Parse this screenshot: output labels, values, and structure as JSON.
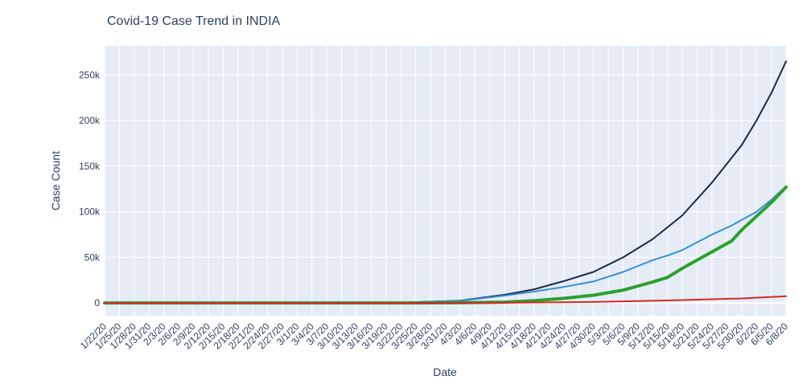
{
  "chart_data": {
    "type": "line",
    "title": "Covid-19 Case Trend in INDIA",
    "xlabel": "Date",
    "ylabel": "Case Count",
    "ylim": [
      -14000,
      282000
    ],
    "yticks": [
      0,
      50000,
      100000,
      150000,
      200000,
      250000
    ],
    "ytick_labels": [
      "0",
      "50k",
      "100k",
      "150k",
      "200k",
      "250k"
    ],
    "start_date": "2020-01-22",
    "num_days": 139,
    "xticks": [
      "1/22/20",
      "1/25/20",
      "1/28/20",
      "1/31/20",
      "2/3/20",
      "2/6/20",
      "2/9/20",
      "2/12/20",
      "2/15/20",
      "2/18/20",
      "2/21/20",
      "2/24/20",
      "2/27/20",
      "3/1/20",
      "3/4/20",
      "3/7/20",
      "3/10/20",
      "3/13/20",
      "3/16/20",
      "3/19/20",
      "3/22/20",
      "3/25/20",
      "3/28/20",
      "3/31/20",
      "4/3/20",
      "4/6/20",
      "4/9/20",
      "4/12/20",
      "4/15/20",
      "4/18/20",
      "4/21/20",
      "4/24/20",
      "4/27/20",
      "4/30/20",
      "5/3/20",
      "5/6/20",
      "5/9/20",
      "5/12/20",
      "5/15/20",
      "5/18/20",
      "5/21/20",
      "5/24/20",
      "5/27/20",
      "5/30/20",
      "6/2/20",
      "6/5/20",
      "6/8/20"
    ],
    "grid": true,
    "legend": "none",
    "series": [
      {
        "color": "#1f2a44",
        "width": 2,
        "x": [
          "1/22/20",
          "3/1/20",
          "3/22/20",
          "4/3/20",
          "4/12/20",
          "4/18/20",
          "4/24/20",
          "4/30/20",
          "5/6/20",
          "5/12/20",
          "5/18/20",
          "5/24/20",
          "5/30/20",
          "6/2/20",
          "6/5/20",
          "6/8/20"
        ],
        "values": [
          0,
          3,
          400,
          2500,
          9000,
          15000,
          24000,
          34000,
          50000,
          70000,
          96000,
          132000,
          173000,
          200000,
          230000,
          265000
        ]
      },
      {
        "color": "#3590d8",
        "width": 2,
        "x": [
          "1/22/20",
          "3/1/20",
          "3/22/20",
          "4/3/20",
          "4/12/20",
          "4/18/20",
          "4/24/20",
          "4/30/20",
          "5/6/20",
          "5/12/20",
          "5/15/20",
          "5/18/20",
          "5/24/20",
          "5/28/20",
          "5/29/20",
          "6/2/20",
          "6/5/20",
          "6/8/20"
        ],
        "values": [
          0,
          3,
          350,
          2300,
          8000,
          12500,
          17500,
          23500,
          34000,
          47000,
          52000,
          58000,
          75000,
          85000,
          88000,
          100000,
          113000,
          128000
        ]
      },
      {
        "color": "#2ca02c",
        "width": 4,
        "x": [
          "1/22/20",
          "3/1/20",
          "3/22/20",
          "4/3/20",
          "4/12/20",
          "4/18/20",
          "4/24/20",
          "4/30/20",
          "5/6/20",
          "5/12/20",
          "5/15/20",
          "5/18/20",
          "5/24/20",
          "5/28/20",
          "5/30/20",
          "6/2/20",
          "6/5/20",
          "6/8/20"
        ],
        "values": [
          0,
          0,
          30,
          200,
          900,
          2500,
          5000,
          8500,
          14000,
          23000,
          28000,
          38000,
          56000,
          68000,
          80000,
          95000,
          110000,
          127000
        ]
      },
      {
        "color": "#d62728",
        "width": 2,
        "x": [
          "1/22/20",
          "3/22/20",
          "4/12/20",
          "4/30/20",
          "5/15/20",
          "5/30/20",
          "6/8/20"
        ],
        "values": [
          0,
          5,
          300,
          1100,
          2700,
          4900,
          7400
        ]
      }
    ]
  }
}
